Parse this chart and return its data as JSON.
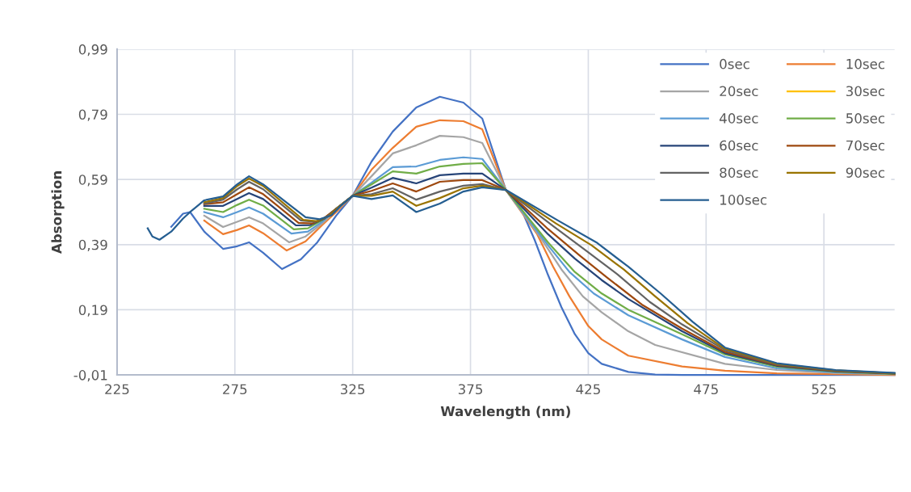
{
  "chart_data": {
    "type": "line",
    "xlabel": "Wavelength (nm)",
    "ylabel": "Absorption",
    "xlim": [
      225,
      555
    ],
    "xticks": [
      225,
      275,
      325,
      375,
      425,
      475,
      525
    ],
    "ylim": [
      -0.01,
      0.99
    ],
    "yticks": [
      {
        "value": -0.01,
        "label": "-0,01"
      },
      {
        "value": 0.19,
        "label": "0,19"
      },
      {
        "value": 0.39,
        "label": "0,39"
      },
      {
        "value": 0.59,
        "label": "0,59"
      },
      {
        "value": 0.79,
        "label": "0,79"
      },
      {
        "value": 0.99,
        "label": "0,99"
      }
    ],
    "grid": true,
    "legend": "top right",
    "marker": "none",
    "line_style": "solid",
    "series": [
      {
        "name": "0sec",
        "color": "#4472c4",
        "x": [
          248,
          253,
          256,
          262,
          270,
          276,
          281,
          287,
          295,
          303,
          310,
          318,
          325,
          333,
          342,
          352,
          362,
          372,
          380,
          390,
          396.6,
          402.2,
          407.9,
          413.6,
          419.3,
          425,
          430.7,
          442,
          453.4,
          464.8,
          480,
          505,
          530,
          555
        ],
        "values": [
          0.445,
          0.485,
          0.49,
          0.43,
          0.377,
          0.385,
          0.397,
          0.365,
          0.315,
          0.345,
          0.397,
          0.479,
          0.54,
          0.645,
          0.737,
          0.811,
          0.844,
          0.826,
          0.777,
          0.558,
          0.498,
          0.405,
          0.297,
          0.198,
          0.115,
          0.057,
          0.024,
          -0.001,
          -0.009,
          -0.01,
          -0.01,
          -0.01,
          -0.01,
          -0.01
        ]
      },
      {
        "name": "10sec",
        "color": "#ed7d31",
        "x": [
          262,
          270,
          276,
          281,
          287,
          297,
          305,
          312,
          318,
          325,
          333,
          342,
          352,
          362,
          372,
          380,
          390,
          403.3,
          410.1,
          417,
          425,
          430.7,
          442,
          464.8,
          483,
          505,
          530,
          555
        ],
        "values": [
          0.464,
          0.422,
          0.435,
          0.449,
          0.425,
          0.372,
          0.4,
          0.45,
          0.49,
          0.54,
          0.62,
          0.687,
          0.752,
          0.772,
          0.769,
          0.744,
          0.558,
          0.422,
          0.322,
          0.231,
          0.14,
          0.099,
          0.049,
          0.016,
          0.003,
          -0.005,
          -0.008,
          -0.01
        ]
      },
      {
        "name": "20sec",
        "color": "#a5a5a5",
        "x": [
          262,
          270,
          276,
          281,
          287,
          298,
          305,
          312,
          318,
          325,
          333,
          342,
          352,
          362,
          372,
          380,
          390,
          404.6,
          413.6,
          422.7,
          430.7,
          442,
          453.4,
          483,
          505,
          530,
          555
        ],
        "values": [
          0.479,
          0.444,
          0.46,
          0.474,
          0.455,
          0.397,
          0.415,
          0.455,
          0.495,
          0.54,
          0.6,
          0.67,
          0.695,
          0.724,
          0.72,
          0.702,
          0.558,
          0.413,
          0.314,
          0.231,
          0.182,
          0.124,
          0.082,
          0.024,
          0.005,
          -0.004,
          -0.008
        ]
      },
      {
        "name": "30sec",
        "color": "#ffc000"
      },
      {
        "name": "40sec",
        "color": "#5b9bd5",
        "x": [
          262,
          270,
          276,
          281,
          287,
          299,
          306,
          312,
          318,
          325,
          333,
          342,
          352,
          362,
          372,
          380,
          390,
          407.9,
          417,
          427.3,
          442,
          464.8,
          483,
          505,
          530,
          555
        ],
        "values": [
          0.49,
          0.474,
          0.49,
          0.504,
          0.485,
          0.424,
          0.43,
          0.46,
          0.5,
          0.54,
          0.58,
          0.628,
          0.63,
          0.65,
          0.658,
          0.653,
          0.558,
          0.388,
          0.306,
          0.24,
          0.173,
          0.099,
          0.045,
          0.01,
          -0.002,
          -0.007
        ]
      },
      {
        "name": "50sec",
        "color": "#70ad47",
        "x": [
          262,
          270,
          276,
          281,
          287,
          300,
          306,
          312,
          318,
          325,
          333,
          342,
          352,
          362,
          372,
          380,
          390,
          407.9,
          419.3,
          430.7,
          442,
          464.8,
          483,
          505,
          530,
          555
        ],
        "values": [
          0.5,
          0.49,
          0.512,
          0.528,
          0.51,
          0.437,
          0.44,
          0.465,
          0.5,
          0.54,
          0.575,
          0.615,
          0.608,
          0.63,
          0.638,
          0.64,
          0.558,
          0.397,
          0.306,
          0.24,
          0.19,
          0.115,
          0.053,
          0.015,
          0.0,
          -0.007
        ]
      },
      {
        "name": "60sec",
        "color": "#264478",
        "x": [
          262,
          270,
          276,
          281,
          287,
          301,
          307,
          313,
          318,
          325,
          333,
          342,
          352,
          362,
          372,
          380,
          390,
          407.9,
          419.3,
          430.7,
          442,
          464.8,
          483,
          505,
          530,
          555
        ],
        "values": [
          0.509,
          0.509,
          0.53,
          0.548,
          0.53,
          0.449,
          0.45,
          0.47,
          0.5,
          0.54,
          0.565,
          0.595,
          0.578,
          0.603,
          0.608,
          0.608,
          0.558,
          0.422,
          0.347,
          0.281,
          0.223,
          0.124,
          0.057,
          0.018,
          0.001,
          -0.006
        ]
      },
      {
        "name": "70sec",
        "color": "#9e480e",
        "x": [
          262,
          270,
          276,
          281,
          287,
          302,
          308,
          313,
          318,
          325,
          333,
          342,
          352,
          362,
          372,
          380,
          390,
          407.9,
          421.6,
          433,
          447.7,
          464.8,
          483,
          505,
          530,
          555
        ],
        "values": [
          0.514,
          0.52,
          0.545,
          0.566,
          0.545,
          0.457,
          0.455,
          0.472,
          0.5,
          0.54,
          0.555,
          0.578,
          0.553,
          0.583,
          0.588,
          0.588,
          0.558,
          0.438,
          0.355,
          0.289,
          0.206,
          0.132,
          0.061,
          0.02,
          0.002,
          -0.006
        ]
      },
      {
        "name": "80sec",
        "color": "#636363",
        "x": [
          262,
          270,
          276,
          281,
          287,
          303,
          309,
          314,
          319,
          325,
          333,
          342,
          352,
          362,
          372,
          380,
          390,
          410.1,
          424,
          437.7,
          451.1,
          464.8,
          483,
          505,
          530,
          555
        ],
        "values": [
          0.516,
          0.528,
          0.56,
          0.583,
          0.56,
          0.464,
          0.46,
          0.475,
          0.505,
          0.54,
          0.545,
          0.563,
          0.528,
          0.553,
          0.571,
          0.576,
          0.558,
          0.447,
          0.372,
          0.297,
          0.214,
          0.145,
          0.066,
          0.022,
          0.003,
          -0.005
        ]
      },
      {
        "name": "90sec",
        "color": "#997300",
        "x": [
          262,
          270,
          276,
          281,
          287,
          304,
          310,
          315,
          319,
          325,
          333,
          342,
          352,
          362,
          372,
          380,
          390,
          411.3,
          426.4,
          440,
          453.4,
          467.1,
          483,
          505,
          530,
          555
        ],
        "values": [
          0.52,
          0.533,
          0.57,
          0.593,
          0.57,
          0.466,
          0.462,
          0.478,
          0.505,
          0.54,
          0.54,
          0.553,
          0.509,
          0.533,
          0.563,
          0.571,
          0.558,
          0.455,
          0.388,
          0.314,
          0.231,
          0.149,
          0.07,
          0.024,
          0.004,
          -0.005
        ]
      },
      {
        "name": "100sec",
        "color": "#255e91",
        "x": [
          238,
          240,
          243,
          248,
          253,
          256,
          262,
          270,
          276,
          281,
          287,
          305,
          311,
          316,
          320,
          325,
          333,
          342,
          352,
          362,
          372,
          380,
          390,
          412.4,
          428.4,
          442,
          455.7,
          469.3,
          483,
          505,
          530,
          555
        ],
        "values": [
          0.44,
          0.415,
          0.405,
          0.43,
          0.47,
          0.49,
          0.526,
          0.538,
          0.575,
          0.6,
          0.575,
          0.474,
          0.468,
          0.48,
          0.51,
          0.54,
          0.53,
          0.541,
          0.49,
          0.516,
          0.553,
          0.566,
          0.558,
          0.463,
          0.397,
          0.322,
          0.24,
          0.153,
          0.074,
          0.026,
          0.005,
          -0.004
        ]
      }
    ]
  }
}
